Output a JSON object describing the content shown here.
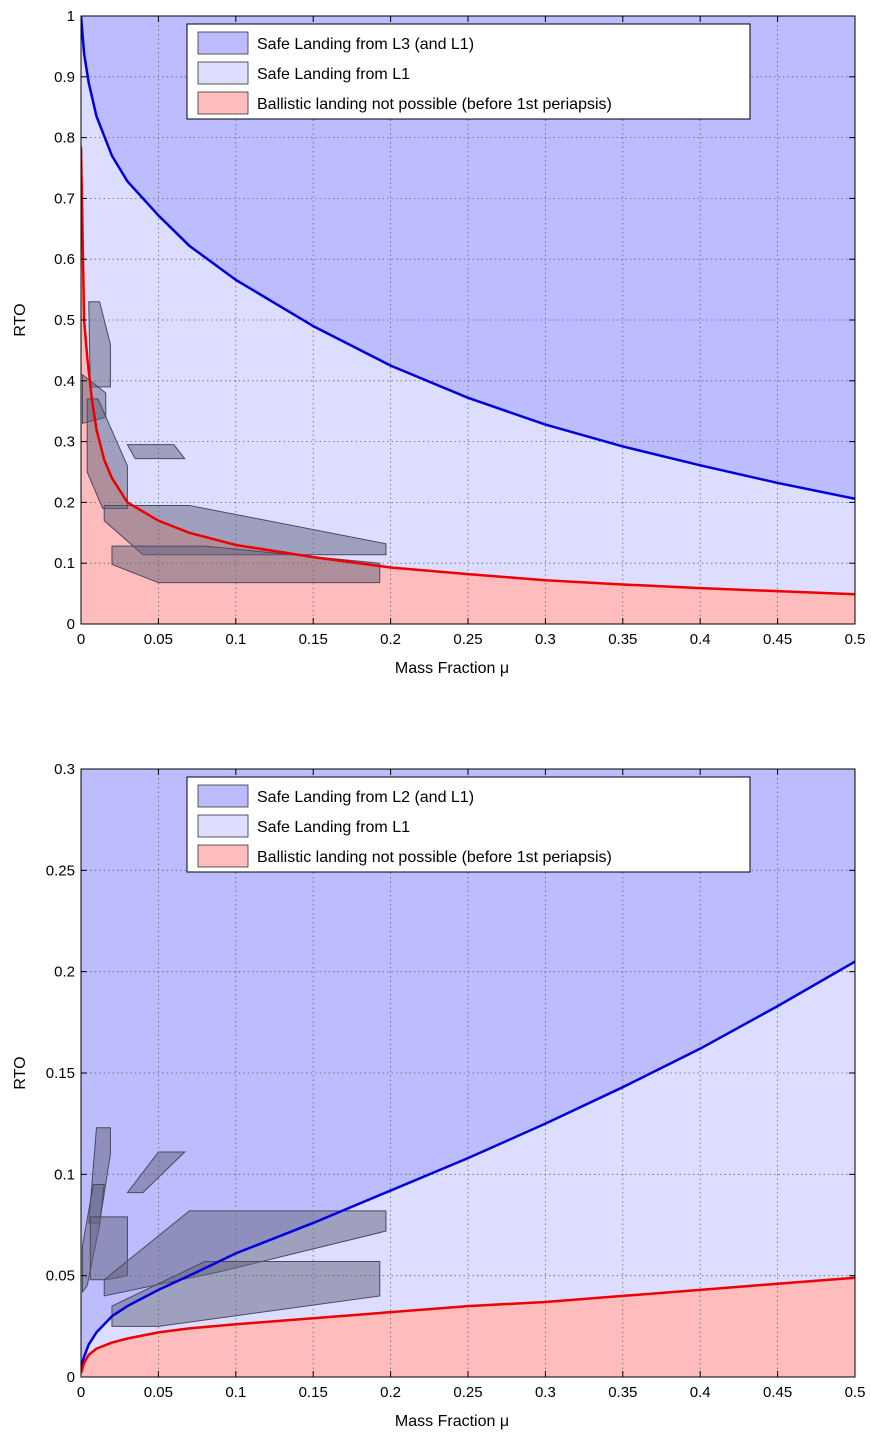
{
  "colors": {
    "upper_region": "#bcbcff",
    "middle_region": "#ddddff",
    "lower_region": "#ffbcbc",
    "upper_curve": "#0000dd",
    "lower_curve": "#ee0000",
    "overlay_fill": "#62627e",
    "overlay_stroke": "#4a4a60",
    "grid": "#666666"
  },
  "chart_data": [
    {
      "type": "area",
      "xlabel": "Mass Fraction μ",
      "ylabel": "RTO",
      "xlim": [
        0,
        0.5
      ],
      "ylim": [
        0,
        1
      ],
      "xticks": [
        0,
        0.05,
        0.1,
        0.15,
        0.2,
        0.25,
        0.3,
        0.35,
        0.4,
        0.45,
        0.5
      ],
      "xtick_labels": [
        "0",
        "0.05",
        "0.1",
        "0.15",
        "0.2",
        "0.25",
        "0.3",
        "0.35",
        "0.4",
        "0.45",
        "0.5"
      ],
      "yticks": [
        0,
        0.1,
        0.2,
        0.3,
        0.4,
        0.5,
        0.6,
        0.7,
        0.8,
        0.9,
        1
      ],
      "ytick_labels": [
        "0",
        "0.1",
        "0.2",
        "0.3",
        "0.4",
        "0.5",
        "0.6",
        "0.7",
        "0.8",
        "0.9",
        "1"
      ],
      "grid": true,
      "legend_position": "top",
      "legend": [
        {
          "label": "Safe Landing from L3 (and L1)",
          "region": "upper"
        },
        {
          "label": "Safe Landing from L1",
          "region": "middle"
        },
        {
          "label": "Ballistic landing not possible (before 1st periapsis)",
          "region": "lower"
        }
      ],
      "upper_curve": {
        "x": [
          0,
          0.002,
          0.005,
          0.01,
          0.02,
          0.03,
          0.05,
          0.07,
          0.1,
          0.15,
          0.2,
          0.25,
          0.3,
          0.35,
          0.4,
          0.45,
          0.5
        ],
        "y": [
          1.0,
          0.938,
          0.89,
          0.835,
          0.77,
          0.728,
          0.672,
          0.622,
          0.566,
          0.49,
          0.425,
          0.372,
          0.328,
          0.292,
          0.261,
          0.232,
          0.206
        ]
      },
      "lower_curve": {
        "x": [
          0,
          0.002,
          0.004,
          0.007,
          0.01,
          0.015,
          0.02,
          0.03,
          0.05,
          0.07,
          0.1,
          0.15,
          0.2,
          0.25,
          0.3,
          0.35,
          0.4,
          0.45,
          0.5
        ],
        "y": [
          0.785,
          0.5,
          0.44,
          0.37,
          0.32,
          0.27,
          0.24,
          0.2,
          0.17,
          0.15,
          0.13,
          0.11,
          0.093,
          0.082,
          0.072,
          0.065,
          0.059,
          0.054,
          0.049
        ]
      },
      "overlays": [
        [
          [
            0.005,
            0.53
          ],
          [
            0.012,
            0.53
          ],
          [
            0.019,
            0.46
          ],
          [
            0.019,
            0.39
          ],
          [
            0.006,
            0.39
          ]
        ],
        [
          [
            0.001,
            0.41
          ],
          [
            0.016,
            0.38
          ],
          [
            0.016,
            0.34
          ],
          [
            0.001,
            0.33
          ]
        ],
        [
          [
            0.004,
            0.37
          ],
          [
            0.011,
            0.37
          ],
          [
            0.03,
            0.26
          ],
          [
            0.03,
            0.19
          ],
          [
            0.014,
            0.19
          ],
          [
            0.004,
            0.25
          ]
        ],
        [
          [
            0.03,
            0.295
          ],
          [
            0.06,
            0.295
          ],
          [
            0.067,
            0.272
          ],
          [
            0.035,
            0.272
          ]
        ],
        [
          [
            0.015,
            0.195
          ],
          [
            0.07,
            0.195
          ],
          [
            0.197,
            0.132
          ],
          [
            0.197,
            0.114
          ],
          [
            0.04,
            0.114
          ],
          [
            0.015,
            0.17
          ]
        ],
        [
          [
            0.02,
            0.128
          ],
          [
            0.08,
            0.128
          ],
          [
            0.193,
            0.1
          ],
          [
            0.193,
            0.068
          ],
          [
            0.05,
            0.068
          ],
          [
            0.02,
            0.098
          ]
        ]
      ]
    },
    {
      "type": "area",
      "xlabel": "Mass Fraction μ",
      "ylabel": "RTO",
      "xlim": [
        0,
        0.5
      ],
      "ylim": [
        0,
        0.3
      ],
      "xticks": [
        0,
        0.05,
        0.1,
        0.15,
        0.2,
        0.25,
        0.3,
        0.35,
        0.4,
        0.45,
        0.5
      ],
      "xtick_labels": [
        "0",
        "0.05",
        "0.1",
        "0.15",
        "0.2",
        "0.25",
        "0.3",
        "0.35",
        "0.4",
        "0.45",
        "0.5"
      ],
      "yticks": [
        0,
        0.05,
        0.1,
        0.15,
        0.2,
        0.25,
        0.3
      ],
      "ytick_labels": [
        "0",
        "0.05",
        "0.1",
        "0.15",
        "0.2",
        "0.25",
        "0.3"
      ],
      "grid": true,
      "legend_position": "top",
      "legend": [
        {
          "label": "Safe Landing from L2 (and L1)",
          "region": "upper"
        },
        {
          "label": "Safe Landing from L1",
          "region": "middle"
        },
        {
          "label": "Ballistic landing not possible (before 1st periapsis)",
          "region": "lower"
        }
      ],
      "upper_curve": {
        "x": [
          0,
          0.002,
          0.005,
          0.01,
          0.02,
          0.03,
          0.05,
          0.07,
          0.1,
          0.15,
          0.2,
          0.25,
          0.3,
          0.35,
          0.4,
          0.45,
          0.5
        ],
        "y": [
          0.005,
          0.01,
          0.016,
          0.022,
          0.03,
          0.035,
          0.043,
          0.05,
          0.061,
          0.076,
          0.092,
          0.108,
          0.125,
          0.143,
          0.162,
          0.183,
          0.205
        ]
      },
      "lower_curve": {
        "x": [
          0,
          0.002,
          0.005,
          0.01,
          0.02,
          0.03,
          0.05,
          0.07,
          0.1,
          0.15,
          0.2,
          0.25,
          0.3,
          0.35,
          0.4,
          0.45,
          0.5
        ],
        "y": [
          0.002,
          0.007,
          0.011,
          0.014,
          0.017,
          0.019,
          0.022,
          0.024,
          0.026,
          0.029,
          0.032,
          0.035,
          0.037,
          0.04,
          0.043,
          0.046,
          0.049
        ]
      },
      "overlays": [
        [
          [
            0.01,
            0.123
          ],
          [
            0.019,
            0.123
          ],
          [
            0.019,
            0.11
          ],
          [
            0.012,
            0.076
          ],
          [
            0.005,
            0.076
          ]
        ],
        [
          [
            0.001,
            0.065
          ],
          [
            0.008,
            0.095
          ],
          [
            0.015,
            0.095
          ],
          [
            0.012,
            0.075
          ],
          [
            0.004,
            0.045
          ],
          [
            0.001,
            0.042
          ]
        ],
        [
          [
            0.006,
            0.079
          ],
          [
            0.03,
            0.079
          ],
          [
            0.03,
            0.05
          ],
          [
            0.016,
            0.048
          ],
          [
            0.006,
            0.048
          ]
        ],
        [
          [
            0.05,
            0.111
          ],
          [
            0.067,
            0.111
          ],
          [
            0.04,
            0.091
          ],
          [
            0.03,
            0.091
          ]
        ],
        [
          [
            0.015,
            0.048
          ],
          [
            0.07,
            0.082
          ],
          [
            0.197,
            0.082
          ],
          [
            0.197,
            0.072
          ],
          [
            0.09,
            0.052
          ],
          [
            0.015,
            0.04
          ]
        ],
        [
          [
            0.02,
            0.035
          ],
          [
            0.08,
            0.057
          ],
          [
            0.193,
            0.057
          ],
          [
            0.193,
            0.04
          ],
          [
            0.05,
            0.025
          ],
          [
            0.02,
            0.025
          ]
        ]
      ]
    }
  ]
}
